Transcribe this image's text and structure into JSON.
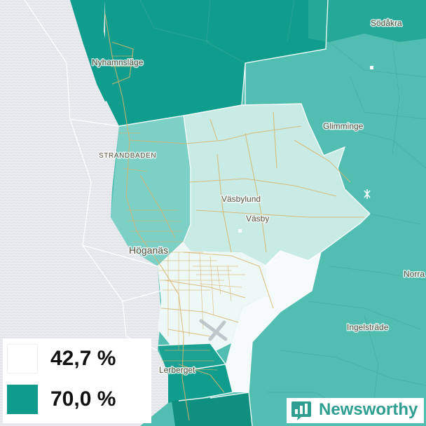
{
  "map": {
    "places": [
      {
        "id": "nyhamnslage",
        "label": "Nyhamnsläge"
      },
      {
        "id": "sodakra",
        "label": "Södåkra"
      },
      {
        "id": "glimminge",
        "label": "Glimminge"
      },
      {
        "id": "strandbaden",
        "label": "STRANDBADEN"
      },
      {
        "id": "vasbylund",
        "label": "Väsbylund"
      },
      {
        "id": "vasby",
        "label": "Väsby"
      },
      {
        "id": "hoganas",
        "label": "Höganäs"
      },
      {
        "id": "norra",
        "label": "Norra"
      },
      {
        "id": "ingelstrade",
        "label": "Ingelsträde"
      },
      {
        "id": "lerberget",
        "label": "Lerberget"
      }
    ],
    "colors": {
      "water": "#e9ebee",
      "high": "#109d8d",
      "mid": "#52beb2",
      "midlight": "#7dd0c6",
      "light": "#c8ebe5",
      "lightest": "#f5fbfa",
      "roads": "#d8b56f"
    }
  },
  "legend": {
    "items": [
      {
        "value": "42,7 %",
        "color": "#ffffff"
      },
      {
        "value": "70,0 %",
        "color": "#0f9c8c"
      }
    ]
  },
  "brand": {
    "name": "Newsworthy",
    "color": "#2e9e90"
  }
}
